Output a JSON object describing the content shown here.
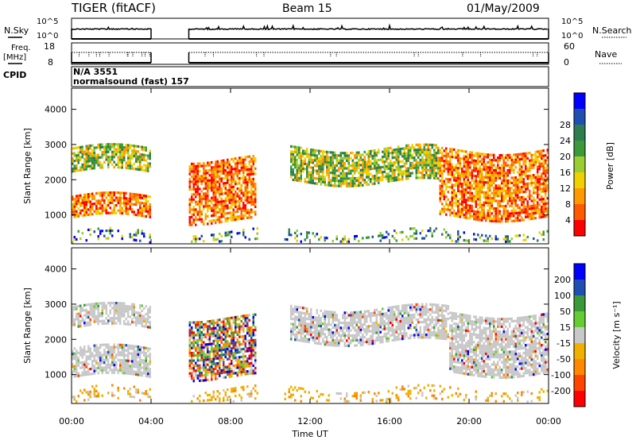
{
  "header": {
    "station": "TIGER (fitACF)",
    "beam": "Beam 15",
    "date": "01/May/2009"
  },
  "top_panels": {
    "nsky_label": "N.Sky",
    "nsky_ticks": [
      "10^5",
      "10^0"
    ],
    "nsearch_label": "N.Search",
    "nsearch_ticks": [
      "10^5",
      "10^0"
    ],
    "freq_label": "Freq.",
    "freq_unit": "[MHz]",
    "freq_ticks": [
      18,
      8
    ],
    "nave_label": "Nave",
    "nave_ticks": [
      60,
      0
    ],
    "cpid_label": "CPID",
    "cpid_text_1": "N/A 3551",
    "cpid_text_2": "normalsound (fast) 157"
  },
  "colors": {
    "power_scale": [
      "#0000ff",
      "#1f4fb0",
      "#2e7d4f",
      "#3a9a3a",
      "#9acd32",
      "#f0d000",
      "#ff9900",
      "#ff5a00",
      "#ff0000"
    ],
    "velocity_scale": [
      "#0000ff",
      "#1f4fb0",
      "#3a9a3a",
      "#66cc33",
      "#c8c8c8",
      "#f0b000",
      "#ff8800",
      "#ff4400",
      "#ff0000"
    ],
    "ground": "#c8c8c8"
  },
  "chart_data": [
    {
      "type": "heatmap",
      "title": "Power",
      "xlabel": "",
      "ylabel": "Slant Range [km]",
      "x_ticks": [
        "00:00",
        "04:00",
        "08:00",
        "12:00",
        "16:00",
        "20:00",
        "00:00"
      ],
      "y_ticks": [
        1000,
        2000,
        3000,
        4000
      ],
      "xlim_hours": [
        0,
        24
      ],
      "ylim_km": [
        180,
        4600
      ],
      "colorbar_label": "Power [dB]",
      "colorbar_ticks": [
        4,
        8,
        12,
        16,
        20,
        24,
        28
      ],
      "data_gaps_hours": [
        [
          4.0,
          5.9
        ],
        [
          9.3,
          10.6
        ]
      ],
      "echo_bands": [
        {
          "start": 0.0,
          "end": 4.0,
          "range_lo": 900,
          "range_hi": 1500,
          "power": "high"
        },
        {
          "start": 0.0,
          "end": 4.0,
          "range_lo": 2200,
          "range_hi": 2900,
          "power": "medium"
        },
        {
          "start": 5.9,
          "end": 9.2,
          "range_lo": 800,
          "range_hi": 2600,
          "power": "high"
        },
        {
          "start": 11.0,
          "end": 18.5,
          "range_lo": 1900,
          "range_hi": 2900,
          "power": "medium"
        },
        {
          "start": 18.5,
          "end": 24.0,
          "range_lo": 900,
          "range_hi": 2800,
          "power": "high"
        },
        {
          "start": 0.0,
          "end": 24.0,
          "range_lo": 180,
          "range_hi": 500,
          "power": "low"
        }
      ]
    },
    {
      "type": "heatmap",
      "title": "Velocity",
      "xlabel": "Time UT",
      "ylabel": "Slant Range [km]",
      "x_ticks": [
        "00:00",
        "04:00",
        "08:00",
        "12:00",
        "16:00",
        "20:00",
        "00:00"
      ],
      "y_ticks": [
        1000,
        2000,
        3000,
        4000
      ],
      "xlim_hours": [
        0,
        24
      ],
      "ylim_km": [
        180,
        4600
      ],
      "colorbar_label": "Velocity [m s⁻¹]",
      "colorbar_ticks": [
        200,
        100,
        50,
        15,
        -15,
        -50,
        -100,
        -200
      ],
      "data_gaps_hours": [
        [
          4.0,
          5.9
        ],
        [
          9.3,
          10.6
        ]
      ],
      "echo_bands": [
        {
          "start": 0.0,
          "end": 4.0,
          "range_lo": 900,
          "range_hi": 1700,
          "velocity": "ground"
        },
        {
          "start": 0.0,
          "end": 4.0,
          "range_lo": 2300,
          "range_hi": 2900,
          "velocity": "ground"
        },
        {
          "start": 5.9,
          "end": 9.2,
          "range_lo": 900,
          "range_hi": 2600,
          "velocity": "mixed"
        },
        {
          "start": 11.0,
          "end": 19.0,
          "range_lo": 1900,
          "range_hi": 2900,
          "velocity": "ground"
        },
        {
          "start": 19.0,
          "end": 24.0,
          "range_lo": 1000,
          "range_hi": 2700,
          "velocity": "ground"
        },
        {
          "start": 0.0,
          "end": 24.0,
          "range_lo": 180,
          "range_hi": 600,
          "velocity": "negative"
        }
      ]
    }
  ]
}
